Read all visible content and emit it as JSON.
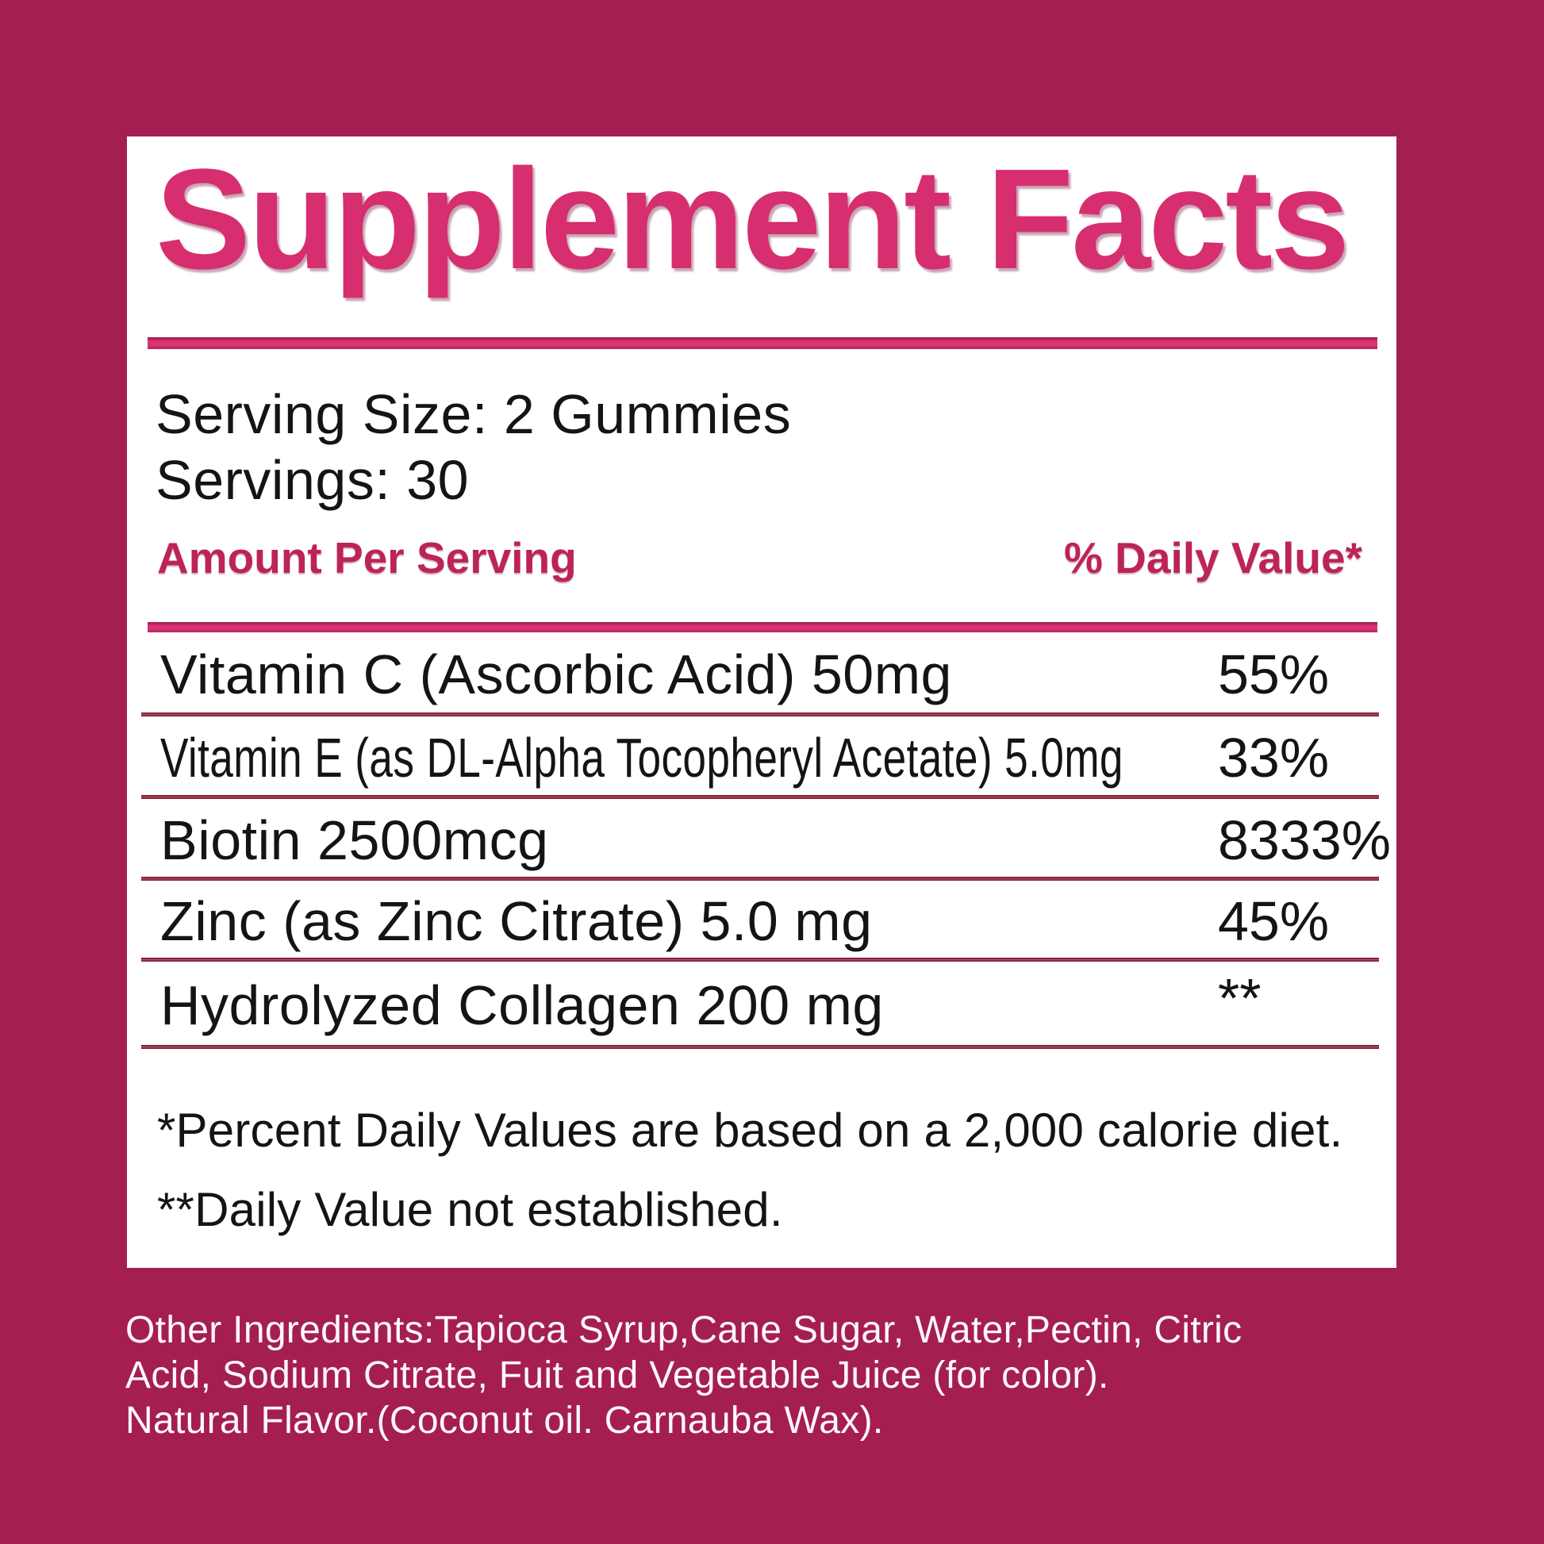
{
  "colors": {
    "background": "#A51E51",
    "panel": "#FFFFFF",
    "title_pink": "#D62E6F",
    "header_pink": "#BC2456",
    "divider_dark": "#7E2039",
    "body_text": "#141414",
    "ingredients_text": "#FFFFFF"
  },
  "label": {
    "title": "Supplement Facts",
    "serving_size": "Serving Size: 2 Gummies",
    "servings": "Servings: 30",
    "amount_header": "Amount Per Serving",
    "dv_header": "% Daily Value*",
    "rows": [
      {
        "name": "Vitamin C (Ascorbic Acid) 50mg",
        "dv": "55%"
      },
      {
        "name": "Vitamin E (as DL-Alpha Tocopheryl Acetate) 5.0mg",
        "dv": "33%"
      },
      {
        "name": "Biotin 2500mcg",
        "dv": "8333%"
      },
      {
        "name": "Zinc (as Zinc Citrate) 5.0 mg",
        "dv": "45%"
      },
      {
        "name": "Hydrolyzed Collagen 200 mg",
        "dv": "**"
      }
    ],
    "footnotes": [
      "*Percent Daily Values are based on a 2,000 calorie diet.",
      "**Daily Value not established."
    ]
  },
  "other_ingredients": {
    "lines": [
      "Other Ingredients:Tapioca Syrup,Cane Sugar, Water,Pectin, Citric",
      "Acid, Sodium Citrate, Fuit and Vegetable Juice (for color).",
      "Natural Flavor.(Coconut oil. Carnauba Wax)."
    ]
  }
}
